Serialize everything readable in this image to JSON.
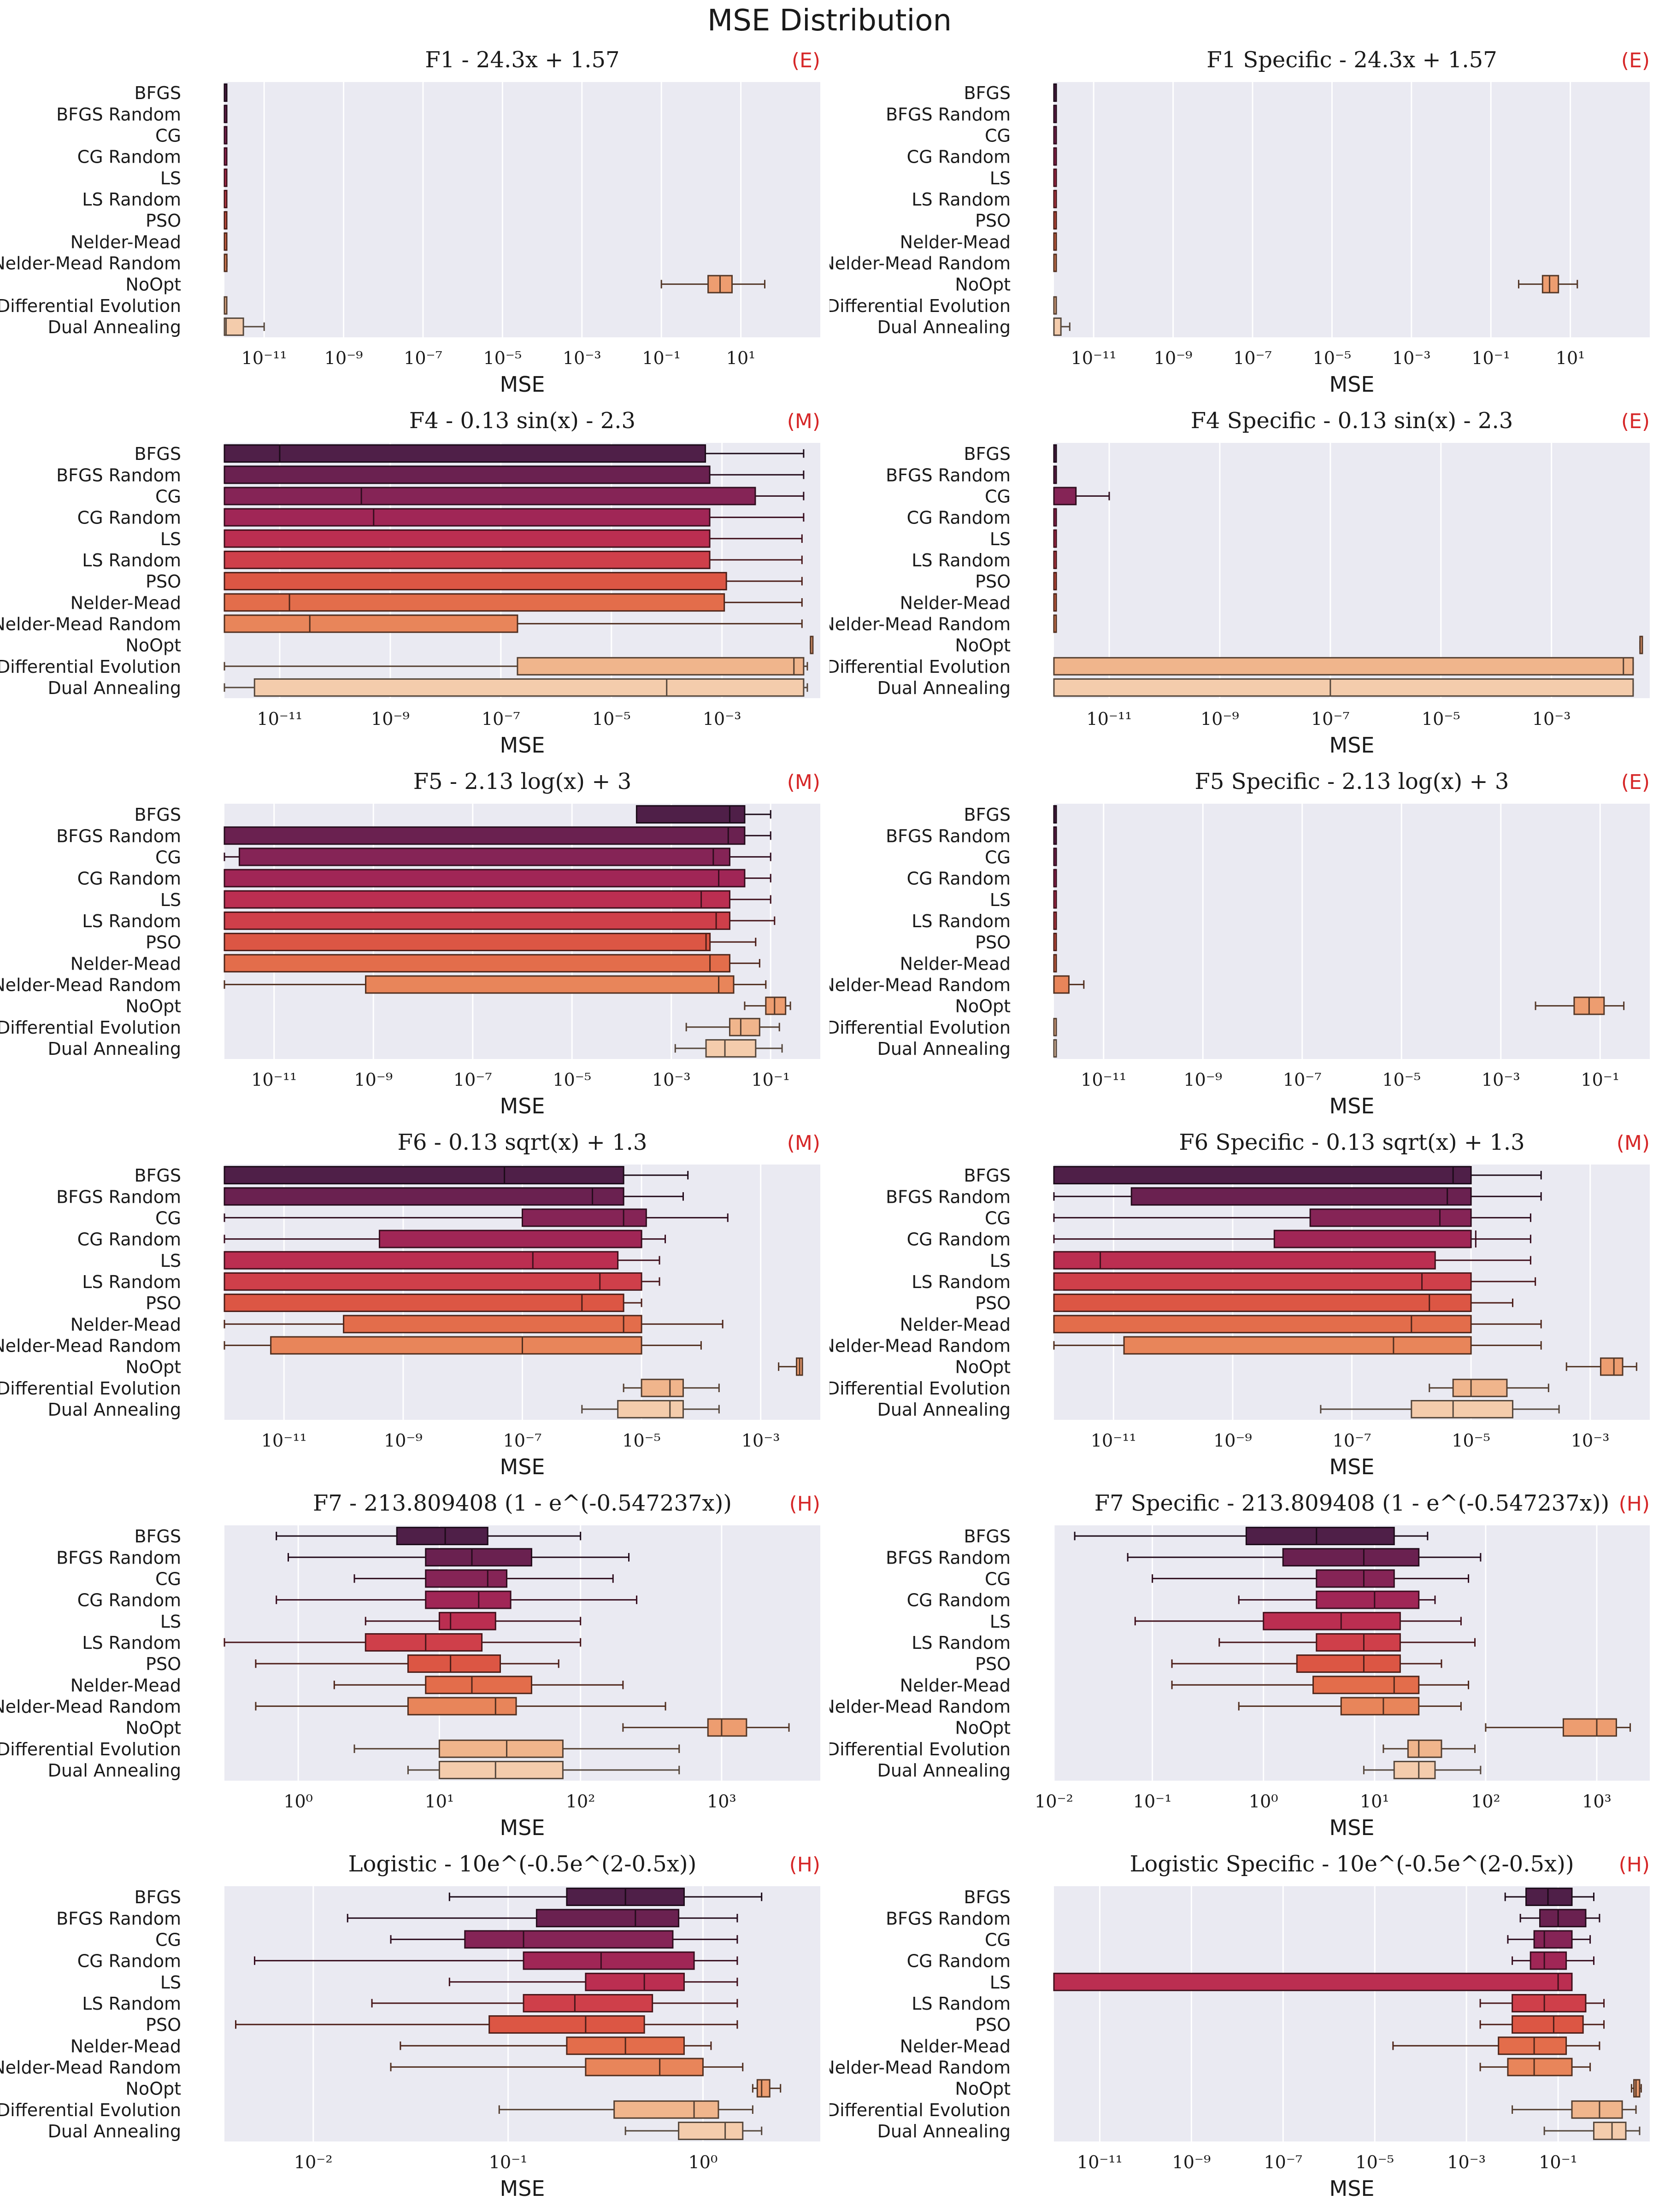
{
  "suptitle": "MSE Distribution",
  "xlabel": "MSE",
  "methods": [
    "BFGS",
    "BFGS Random",
    "CG",
    "CG Random",
    "LS",
    "LS Random",
    "PSO",
    "Nelder-Mead",
    "Nelder-Mead Random",
    "NoOpt",
    "Differential Evolution",
    "Dual Annealing"
  ],
  "palette": [
    "#4f1f48",
    "#6a2150",
    "#852456",
    "#a02656",
    "#bb2e51",
    "#cf3f4a",
    "#dc5644",
    "#e36d4b",
    "#e8855a",
    "#ed9d70",
    "#f0b58c",
    "#f4ccac"
  ],
  "chart_data": [
    {
      "type": "box",
      "scale": "log",
      "title": "F1 - 24.3x + 1.57",
      "difficulty": "(E)",
      "xlim": [
        1e-12,
        1000
      ],
      "xticks": [
        -11,
        -9,
        -7,
        -5,
        -3,
        -1,
        1
      ],
      "boxes": [
        [
          1e-12,
          1e-12,
          1e-12,
          1e-12,
          1e-12
        ],
        [
          1e-12,
          1e-12,
          1e-12,
          1e-12,
          1e-12
        ],
        [
          1e-12,
          1e-12,
          1e-12,
          1e-12,
          1e-12
        ],
        [
          1e-12,
          1e-12,
          1e-12,
          1e-12,
          1e-12
        ],
        [
          1e-12,
          1e-12,
          1e-12,
          1e-12,
          1e-12
        ],
        [
          1e-12,
          1e-12,
          1e-12,
          1e-12,
          1e-12
        ],
        [
          1e-12,
          1e-12,
          1e-12,
          1e-12,
          1e-12
        ],
        [
          1e-12,
          1e-12,
          1e-12,
          1e-12,
          1e-12
        ],
        [
          1e-12,
          1e-12,
          1e-12,
          1.15e-12,
          1.15e-12
        ],
        [
          0.1,
          1.5,
          3,
          6,
          40
        ],
        [
          1e-12,
          1e-12,
          1e-12,
          1e-12,
          1e-12
        ],
        [
          1e-12,
          1e-12,
          1.1e-12,
          3e-12,
          1e-11
        ]
      ]
    },
    {
      "type": "box",
      "scale": "log",
      "title": "F1 Specific - 24.3x + 1.57",
      "difficulty": "(E)",
      "xlim": [
        1e-12,
        1000
      ],
      "xticks": [
        -11,
        -9,
        -7,
        -5,
        -3,
        -1,
        1
      ],
      "boxes": [
        [
          1e-12,
          1e-12,
          1e-12,
          1e-12,
          1e-12
        ],
        [
          1e-12,
          1e-12,
          1e-12,
          1e-12,
          1e-12
        ],
        [
          1e-12,
          1e-12,
          1e-12,
          1e-12,
          1e-12
        ],
        [
          1e-12,
          1e-12,
          1e-12,
          1e-12,
          1e-12
        ],
        [
          1e-12,
          1e-12,
          1e-12,
          1e-12,
          1e-12
        ],
        [
          1e-12,
          1e-12,
          1e-12,
          1e-12,
          1e-12
        ],
        [
          1e-12,
          1e-12,
          1e-12,
          1e-12,
          1e-12
        ],
        [
          1e-12,
          1e-12,
          1e-12,
          1e-12,
          1e-12
        ],
        [
          1e-12,
          1e-12,
          1e-12,
          1e-12,
          1e-12
        ],
        [
          0.5,
          2,
          3,
          5,
          15
        ],
        [
          1e-12,
          1e-12,
          1e-12,
          1e-12,
          1e-12
        ],
        [
          1e-12,
          1e-12,
          1e-12,
          1.5e-12,
          2.5e-12
        ]
      ]
    },
    {
      "type": "box",
      "scale": "log",
      "title": "F4 - 0.13 sin(x) - 2.3",
      "difficulty": "(M)",
      "xlim": [
        1e-12,
        0.06
      ],
      "xticks": [
        -11,
        -9,
        -7,
        -5,
        -3
      ],
      "boxes": [
        [
          1e-12,
          1e-12,
          1e-11,
          0.0005,
          0.03
        ],
        [
          1e-12,
          1e-12,
          1e-12,
          0.0006,
          0.03
        ],
        [
          1e-12,
          1e-12,
          3e-10,
          0.004,
          0.03
        ],
        [
          1e-12,
          1e-12,
          5e-10,
          0.0006,
          0.03
        ],
        [
          1e-12,
          1e-12,
          1e-12,
          0.0006,
          0.028
        ],
        [
          1e-12,
          1e-12,
          1e-12,
          0.0006,
          0.028
        ],
        [
          1e-12,
          1e-12,
          1e-12,
          0.0012,
          0.028
        ],
        [
          1e-12,
          1e-12,
          1.5e-11,
          0.0011,
          0.028
        ],
        [
          1e-12,
          1e-12,
          3.5e-11,
          2e-07,
          0.028
        ],
        [
          0.04,
          0.04,
          0.04,
          0.04,
          0.04
        ],
        [
          1e-12,
          2e-07,
          0.02,
          0.03,
          0.035
        ],
        [
          1e-12,
          3.5e-12,
          0.0001,
          0.03,
          0.035
        ]
      ]
    },
    {
      "type": "box",
      "scale": "log",
      "title": "F4 Specific - 0.13 sin(x) - 2.3",
      "difficulty": "(E)",
      "xlim": [
        1e-12,
        0.06
      ],
      "xticks": [
        -11,
        -9,
        -7,
        -5,
        -3
      ],
      "boxes": [
        [
          1e-12,
          1e-12,
          1e-12,
          1e-12,
          1e-12
        ],
        [
          1e-12,
          1e-12,
          1e-12,
          1e-12,
          1e-12
        ],
        [
          1e-12,
          1e-12,
          1e-12,
          2.5e-12,
          1e-11
        ],
        [
          1e-12,
          1e-12,
          1e-12,
          1e-12,
          1e-12
        ],
        [
          1e-12,
          1e-12,
          1e-12,
          1e-12,
          1e-12
        ],
        [
          1e-12,
          1e-12,
          1e-12,
          1e-12,
          1e-12
        ],
        [
          1e-12,
          1e-12,
          1e-12,
          1e-12,
          1e-12
        ],
        [
          1e-12,
          1e-12,
          1e-12,
          1e-12,
          1e-12
        ],
        [
          1e-12,
          1e-12,
          1e-12,
          1e-12,
          1e-12
        ],
        [
          0.04,
          0.04,
          0.04,
          0.04,
          0.04
        ],
        [
          1e-12,
          1e-12,
          0.02,
          0.03,
          0.03
        ],
        [
          1e-12,
          1e-12,
          1e-07,
          0.03,
          0.03
        ]
      ]
    },
    {
      "type": "box",
      "scale": "log",
      "title": "F5 - 2.13 log(x) + 3",
      "difficulty": "(M)",
      "xlim": [
        1e-12,
        1
      ],
      "xticks": [
        -11,
        -9,
        -7,
        -5,
        -3,
        -1
      ],
      "boxes": [
        [
          0.0002,
          0.0002,
          0.015,
          0.03,
          0.1
        ],
        [
          1e-12,
          1e-12,
          0.014,
          0.03,
          0.1
        ],
        [
          1e-12,
          2e-12,
          0.007,
          0.015,
          0.1
        ],
        [
          1e-12,
          1e-12,
          0.009,
          0.03,
          0.1
        ],
        [
          1e-12,
          1e-12,
          0.004,
          0.015,
          0.1
        ],
        [
          1e-12,
          1e-12,
          0.008,
          0.015,
          0.12
        ],
        [
          1e-12,
          1e-12,
          0.005,
          0.006,
          0.05
        ],
        [
          1e-12,
          1e-12,
          0.006,
          0.015,
          0.06
        ],
        [
          1e-12,
          7e-10,
          0.009,
          0.018,
          0.08
        ],
        [
          0.03,
          0.08,
          0.12,
          0.2,
          0.25
        ],
        [
          0.002,
          0.015,
          0.025,
          0.06,
          0.15
        ],
        [
          0.0012,
          0.005,
          0.012,
          0.05,
          0.17
        ]
      ]
    },
    {
      "type": "box",
      "scale": "log",
      "title": "F5 Specific - 2.13 log(x) + 3",
      "difficulty": "(E)",
      "xlim": [
        1e-12,
        1
      ],
      "xticks": [
        -11,
        -9,
        -7,
        -5,
        -3,
        -1
      ],
      "boxes": [
        [
          1e-12,
          1e-12,
          1e-12,
          1e-12,
          1e-12
        ],
        [
          1e-12,
          1e-12,
          1e-12,
          1e-12,
          1e-12
        ],
        [
          1e-12,
          1e-12,
          1e-12,
          1e-12,
          1e-12
        ],
        [
          1e-12,
          1e-12,
          1e-12,
          1e-12,
          1e-12
        ],
        [
          1e-12,
          1e-12,
          1e-12,
          1e-12,
          1e-12
        ],
        [
          1e-12,
          1e-12,
          1e-12,
          1e-12,
          1e-12
        ],
        [
          1e-12,
          1e-12,
          1e-12,
          1e-12,
          1e-12
        ],
        [
          1e-12,
          1e-12,
          1e-12,
          1e-12,
          1e-12
        ],
        [
          1e-12,
          1e-12,
          1e-12,
          2e-12,
          4e-12
        ],
        [
          0.005,
          0.03,
          0.06,
          0.12,
          0.3
        ],
        [
          1e-12,
          1e-12,
          1e-12,
          1e-12,
          1e-12
        ],
        [
          1e-12,
          1e-12,
          1e-12,
          1e-12,
          1e-12
        ]
      ]
    },
    {
      "type": "box",
      "scale": "log",
      "title": "F6 - 0.13 sqrt(x) + 1.3",
      "difficulty": "(M)",
      "xlim": [
        1e-12,
        0.01
      ],
      "xticks": [
        -11,
        -9,
        -7,
        -5,
        -3
      ],
      "boxes": [
        [
          1e-12,
          1e-12,
          5e-08,
          5e-06,
          6e-05
        ],
        [
          1e-12,
          1e-12,
          1.5e-06,
          5e-06,
          5e-05
        ],
        [
          1e-12,
          1e-07,
          5e-06,
          1.2e-05,
          0.00028
        ],
        [
          1e-12,
          4e-10,
          1e-05,
          1e-05,
          2.5e-05
        ],
        [
          1e-12,
          1e-12,
          1.5e-07,
          4e-06,
          2e-05
        ],
        [
          1e-12,
          1e-12,
          2e-06,
          1e-05,
          2e-05
        ],
        [
          1e-12,
          1e-12,
          1e-06,
          5e-06,
          1e-05
        ],
        [
          1e-12,
          1e-10,
          5e-06,
          1e-05,
          0.00023
        ],
        [
          1e-12,
          6e-12,
          1e-07,
          1e-05,
          0.0001
        ],
        [
          0.002,
          0.004,
          0.0045,
          0.005,
          0.005
        ],
        [
          5e-06,
          1e-05,
          3e-05,
          5e-05,
          0.0002
        ],
        [
          1e-06,
          4e-06,
          3e-05,
          5e-05,
          0.0002
        ]
      ]
    },
    {
      "type": "box",
      "scale": "log",
      "title": "F6 Specific - 0.13 sqrt(x) + 1.3",
      "difficulty": "(M)",
      "xlim": [
        1e-12,
        0.01
      ],
      "xticks": [
        -11,
        -9,
        -7,
        -5,
        -3
      ],
      "boxes": [
        [
          1e-12,
          1e-12,
          5e-06,
          1e-05,
          0.00015
        ],
        [
          1e-12,
          2e-11,
          4e-06,
          1e-05,
          0.00015
        ],
        [
          1e-12,
          2e-08,
          3e-06,
          1e-05,
          0.0001
        ],
        [
          1e-12,
          5e-09,
          1.2e-05,
          1e-05,
          0.0001
        ],
        [
          1e-12,
          1e-12,
          6e-12,
          2.5e-06,
          0.0001
        ],
        [
          1e-12,
          1e-12,
          1.5e-06,
          1e-05,
          0.00012
        ],
        [
          1e-12,
          1e-12,
          2e-06,
          1e-05,
          5e-05
        ],
        [
          1e-12,
          1e-12,
          1e-06,
          1e-05,
          0.00015
        ],
        [
          1e-12,
          1.5e-11,
          5e-07,
          1e-05,
          0.00015
        ],
        [
          0.0004,
          0.0015,
          0.0025,
          0.0035,
          0.006
        ],
        [
          2e-06,
          5e-06,
          1e-05,
          4e-05,
          0.0002
        ],
        [
          3e-08,
          1e-06,
          5e-06,
          5e-05,
          0.0003
        ]
      ]
    },
    {
      "type": "box",
      "scale": "log",
      "title": "F7 - 213.809408 (1 - e^(-0.547237x))",
      "difficulty": "(H)",
      "xlim": [
        0.3,
        5000
      ],
      "xticks": [
        0,
        1,
        2,
        3
      ],
      "boxes": [
        [
          0.7,
          5,
          11,
          22,
          100
        ],
        [
          0.85,
          8,
          17,
          45,
          220
        ],
        [
          2.5,
          8,
          22,
          30,
          170
        ],
        [
          0.7,
          8,
          19,
          32,
          250
        ],
        [
          3,
          10,
          12,
          25,
          100
        ],
        [
          0.3,
          3,
          8,
          20,
          100
        ],
        [
          0.5,
          6,
          12,
          27,
          70
        ],
        [
          1.8,
          8,
          17,
          45,
          200
        ],
        [
          0.5,
          6,
          25,
          35,
          400
        ],
        [
          200,
          800,
          1000,
          1500,
          3000
        ],
        [
          2.5,
          10,
          30,
          75,
          500
        ],
        [
          6,
          10,
          25,
          75,
          500
        ]
      ]
    },
    {
      "type": "box",
      "scale": "log",
      "title": "F7 Specific - 213.809408 (1 - e^(-0.547237x))",
      "difficulty": "(H)",
      "xlim": [
        0.013,
        3000
      ],
      "xticks": [
        -2,
        -1,
        0,
        1,
        2,
        3
      ],
      "boxes": [
        [
          0.02,
          0.7,
          3,
          15,
          30
        ],
        [
          0.06,
          1.5,
          8,
          25,
          90
        ],
        [
          0.1,
          3,
          8,
          15,
          70
        ],
        [
          0.6,
          3,
          10,
          25,
          35
        ],
        [
          0.07,
          1,
          5,
          17,
          60
        ],
        [
          0.4,
          3,
          8,
          17,
          80
        ],
        [
          0.15,
          2,
          8,
          17,
          40
        ],
        [
          0.15,
          2.8,
          15,
          25,
          70
        ],
        [
          0.6,
          5,
          12,
          25,
          60
        ],
        [
          100,
          500,
          1000,
          1500,
          2000
        ],
        [
          12,
          20,
          25,
          40,
          80
        ],
        [
          8,
          15,
          25,
          35,
          90
        ]
      ]
    },
    {
      "type": "box",
      "scale": "log",
      "title": "Logistic - 10e^(-0.5e^(2-0.5x))",
      "difficulty": "(H)",
      "xlim": [
        0.0035,
        4
      ],
      "xticks": [
        -2,
        -1,
        0
      ],
      "boxes": [
        [
          0.05,
          0.2,
          0.4,
          0.8,
          2
        ],
        [
          0.015,
          0.14,
          0.45,
          0.75,
          1.5
        ],
        [
          0.025,
          0.06,
          0.12,
          0.7,
          1.5
        ],
        [
          0.005,
          0.12,
          0.3,
          0.9,
          1.5
        ],
        [
          0.05,
          0.25,
          0.5,
          0.8,
          1.5
        ],
        [
          0.02,
          0.12,
          0.22,
          0.55,
          1.5
        ],
        [
          0.004,
          0.08,
          0.25,
          0.5,
          1.5
        ],
        [
          0.028,
          0.2,
          0.4,
          0.8,
          1.1
        ],
        [
          0.025,
          0.25,
          0.6,
          1.0,
          1.6
        ],
        [
          1.8,
          1.9,
          2.0,
          2.2,
          2.5
        ],
        [
          0.09,
          0.35,
          0.9,
          1.2,
          1.8
        ],
        [
          0.4,
          0.75,
          1.3,
          1.6,
          2
        ]
      ]
    },
    {
      "type": "box",
      "scale": "log",
      "title": "Logistic Specific - 10e^(-0.5e^(2-0.5x))",
      "difficulty": "(H)",
      "xlim": [
        1e-12,
        10
      ],
      "xticks": [
        -11,
        -9,
        -7,
        -5,
        -3,
        -1
      ],
      "boxes": [
        [
          0.007,
          0.02,
          0.06,
          0.2,
          0.6
        ],
        [
          0.015,
          0.04,
          0.1,
          0.4,
          0.8
        ],
        [
          0.008,
          0.03,
          0.05,
          0.2,
          0.5
        ],
        [
          0.01,
          0.025,
          0.05,
          0.15,
          0.6
        ],
        [
          1e-12,
          1e-12,
          0.1,
          0.2,
          0.2
        ],
        [
          0.002,
          0.01,
          0.05,
          0.4,
          1.0
        ],
        [
          0.002,
          0.01,
          0.08,
          0.35,
          1.0
        ],
        [
          2.5e-05,
          0.005,
          0.03,
          0.15,
          0.8
        ],
        [
          0.002,
          0.008,
          0.03,
          0.2,
          0.5
        ],
        [
          4,
          4.5,
          5,
          6,
          6.5
        ],
        [
          0.01,
          0.2,
          0.8,
          2.5,
          5
        ],
        [
          0.05,
          0.6,
          1.5,
          3,
          6
        ]
      ]
    }
  ]
}
